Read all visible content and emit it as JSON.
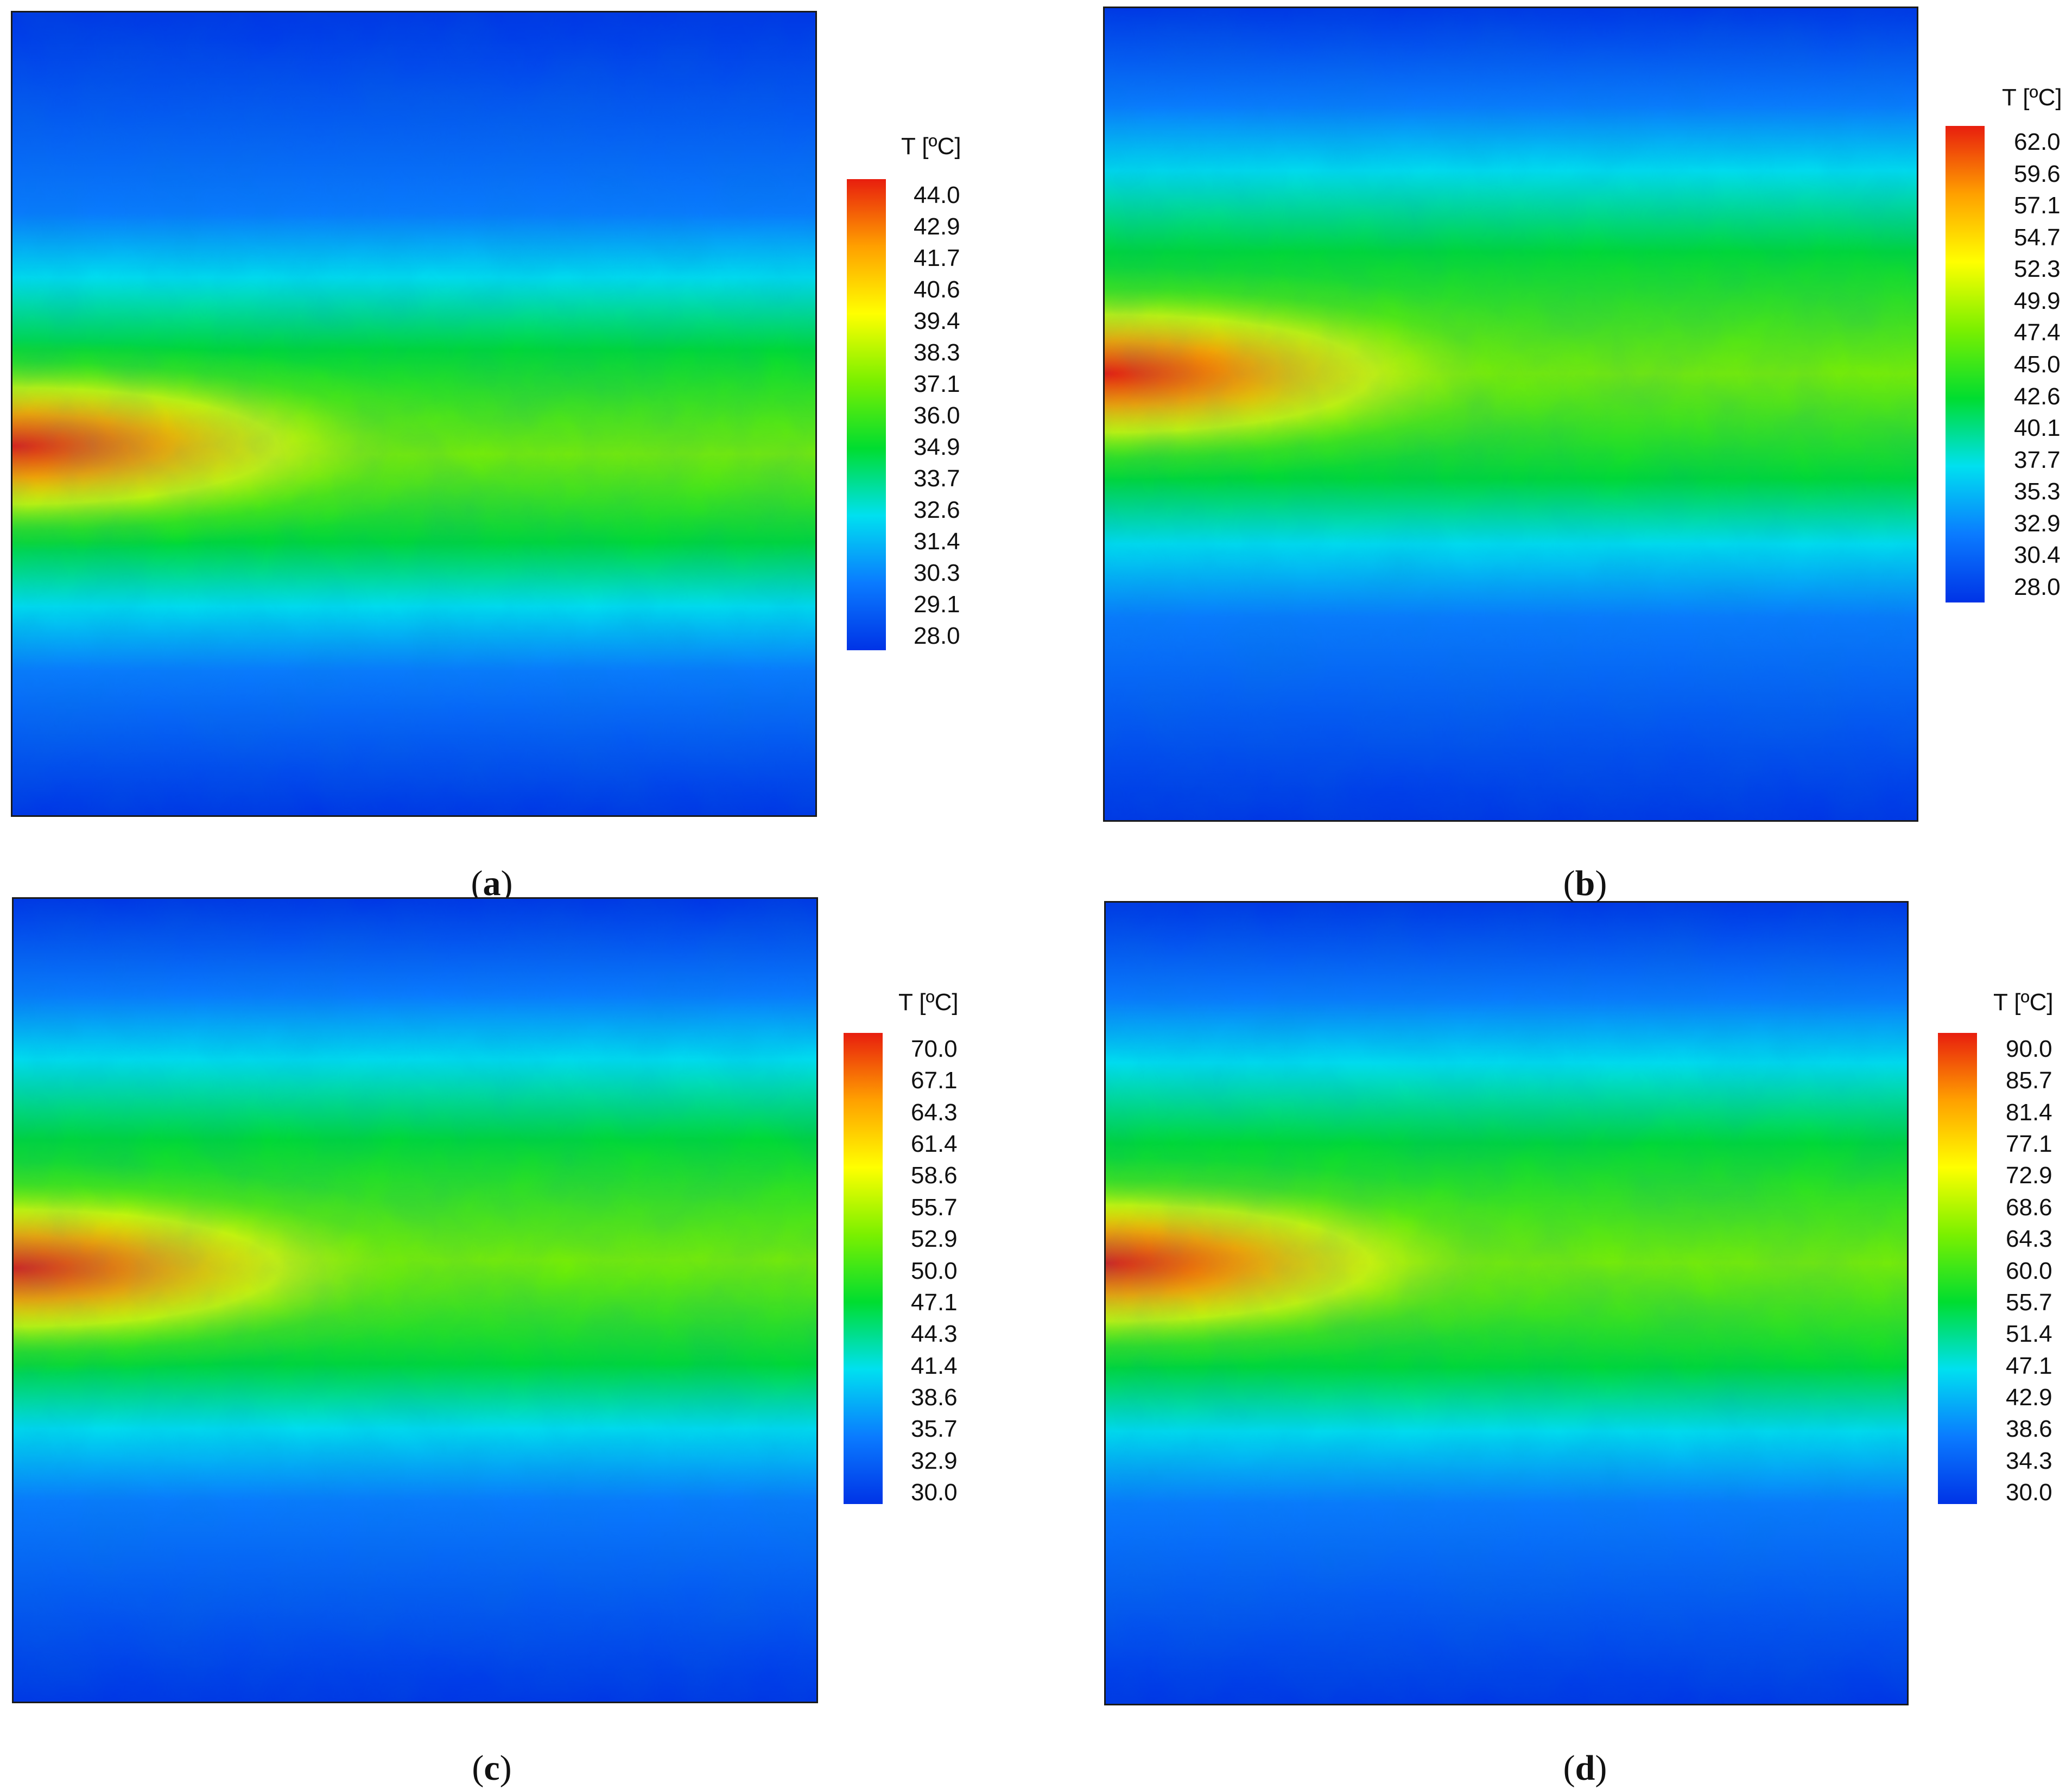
{
  "chart_data": [
    {
      "type": "heatmap",
      "panel": "a",
      "caption_letter": "a",
      "colorbar_title": "T [ºC]",
      "range": [
        28.0,
        44.0
      ],
      "ticks": [
        "44.0",
        "42.9",
        "41.7",
        "40.6",
        "39.4",
        "38.3",
        "37.1",
        "36.0",
        "34.9",
        "33.7",
        "32.6",
        "31.4",
        "30.3",
        "29.1",
        "28.0"
      ],
      "hot_spot": {
        "center_y": 0.54,
        "spread": "narrow"
      }
    },
    {
      "type": "heatmap",
      "panel": "b",
      "caption_letter": "b",
      "colorbar_title": "T [ºC]",
      "range": [
        28.0,
        62.0
      ],
      "ticks": [
        "62.0",
        "59.6",
        "57.1",
        "54.7",
        "52.3",
        "49.9",
        "47.4",
        "45.0",
        "42.6",
        "40.1",
        "37.7",
        "35.3",
        "32.9",
        "30.4",
        "28.0"
      ],
      "hot_spot": {
        "center_y": 0.45,
        "spread": "wide"
      }
    },
    {
      "type": "heatmap",
      "panel": "c",
      "caption_letter": "c",
      "colorbar_title": "T [ºC]",
      "range": [
        30.0,
        70.0
      ],
      "ticks": [
        "70.0",
        "67.1",
        "64.3",
        "61.4",
        "58.6",
        "55.7",
        "52.9",
        "50.0",
        "47.1",
        "44.3",
        "41.4",
        "38.6",
        "35.7",
        "32.9",
        "30.0"
      ],
      "hot_spot": {
        "center_y": 0.46,
        "spread": "wide"
      }
    },
    {
      "type": "heatmap",
      "panel": "d",
      "caption_letter": "d",
      "colorbar_title": "T [ºC]",
      "range": [
        30.0,
        90.0
      ],
      "ticks": [
        "90.0",
        "85.7",
        "81.4",
        "77.1",
        "72.9",
        "68.6",
        "64.3",
        "60.0",
        "55.7",
        "51.4",
        "47.1",
        "42.9",
        "38.6",
        "34.3",
        "30.0"
      ],
      "hot_spot": {
        "center_y": 0.45,
        "spread": "wide"
      }
    }
  ],
  "colormap": [
    "#0033e6",
    "#0a7bff",
    "#00e0f0",
    "#00dd30",
    "#7af000",
    "#ffff00",
    "#ffa000",
    "#e81e0e"
  ]
}
